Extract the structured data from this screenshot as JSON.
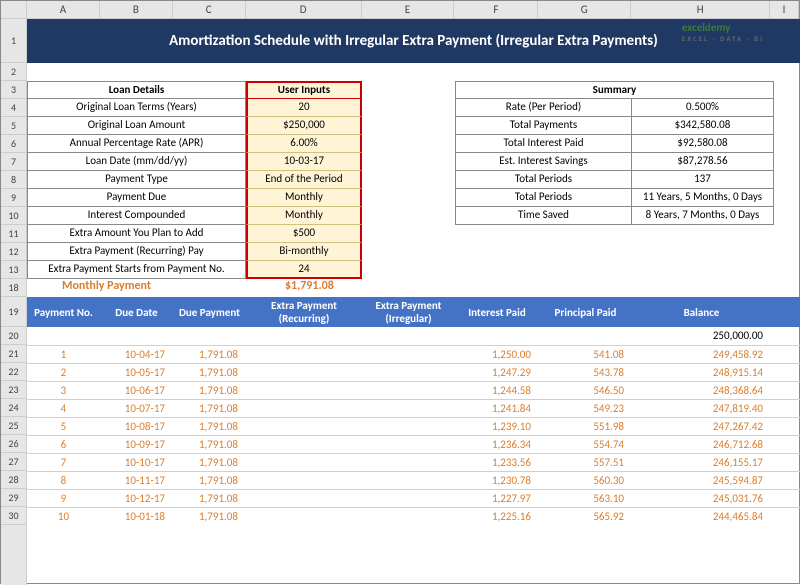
{
  "title": "Amortization Schedule with Irregular Extra Payment (Irregular Extra Payments)",
  "logo": {
    "name": "exceldemy",
    "tagline": "EXCEL · DATA · BI"
  },
  "columns": [
    "A",
    "B",
    "C",
    "D",
    "E",
    "F",
    "G",
    "H",
    "I"
  ],
  "rows": [
    1,
    2,
    3,
    4,
    5,
    6,
    7,
    8,
    9,
    10,
    11,
    12,
    13,
    14,
    15,
    16,
    17,
    18,
    19,
    20,
    21,
    22,
    23,
    24,
    25,
    26,
    27,
    28,
    29,
    30
  ],
  "loan_details": {
    "header_label": "Loan Details",
    "header_value": "User Inputs",
    "items": [
      {
        "label": "Original Loan Terms (Years)",
        "value": "20"
      },
      {
        "label": "Original Loan Amount",
        "value": "$250,000"
      },
      {
        "label": "Annual Percentage Rate (APR)",
        "value": "6.00%"
      },
      {
        "label": "Loan Date (mm/dd/yy)",
        "value": "10-03-17"
      },
      {
        "label": "Payment Type",
        "value": "End of the Period"
      },
      {
        "label": "Payment Due",
        "value": "Monthly"
      },
      {
        "label": "Interest Compounded",
        "value": "Monthly"
      },
      {
        "label": "Extra Amount You Plan to Add",
        "value": "$500"
      },
      {
        "label": "Extra Payment (Recurring) Pay",
        "value": "Bi-monthly"
      },
      {
        "label": "Extra Payment Starts from Payment No.",
        "value": "24"
      }
    ]
  },
  "summary": {
    "header": "Summary",
    "items": [
      {
        "label": "Rate (Per Period)",
        "value": "0.500%"
      },
      {
        "label": "Total Payments",
        "value": "$342,580.08"
      },
      {
        "label": "Total Interest Paid",
        "value": "$92,580.08"
      },
      {
        "label": "Est. Interest Savings",
        "value": "$87,278.56"
      },
      {
        "label": "Total Periods",
        "value": "137"
      },
      {
        "label": "Total Periods",
        "value": "11 Years, 5 Months, 0 Days"
      },
      {
        "label": "Time Saved",
        "value": "8 Years, 7 Months, 0 Days"
      }
    ]
  },
  "monthly_payment_label": "Monthly Payment",
  "monthly_payment_value": "$1,791.08",
  "table": {
    "headers": [
      "Payment No.",
      "Due Date",
      "Due Payment",
      "Extra Payment (Recurring)",
      "Extra Payment (Irregular)",
      "Interest Paid",
      "Principal Paid",
      "Balance"
    ],
    "first_row_balance": "250,000.00",
    "rows": [
      {
        "no": "1",
        "date": "10-04-17",
        "due": "1,791.08",
        "int": "1,250.00",
        "prin": "541.08",
        "bal": "249,458.92"
      },
      {
        "no": "2",
        "date": "10-05-17",
        "due": "1,791.08",
        "int": "1,247.29",
        "prin": "543.78",
        "bal": "248,915.14"
      },
      {
        "no": "3",
        "date": "10-06-17",
        "due": "1,791.08",
        "int": "1,244.58",
        "prin": "546.50",
        "bal": "248,368.64"
      },
      {
        "no": "4",
        "date": "10-07-17",
        "due": "1,791.08",
        "int": "1,241.84",
        "prin": "549.23",
        "bal": "247,819.40"
      },
      {
        "no": "5",
        "date": "10-08-17",
        "due": "1,791.08",
        "int": "1,239.10",
        "prin": "551.98",
        "bal": "247,267.42"
      },
      {
        "no": "6",
        "date": "10-09-17",
        "due": "1,791.08",
        "int": "1,236.34",
        "prin": "554.74",
        "bal": "246,712.68"
      },
      {
        "no": "7",
        "date": "10-10-17",
        "due": "1,791.08",
        "int": "1,233.56",
        "prin": "557.51",
        "bal": "246,155.17"
      },
      {
        "no": "8",
        "date": "10-11-17",
        "due": "1,791.08",
        "int": "1,230.78",
        "prin": "560.30",
        "bal": "245,594.87"
      },
      {
        "no": "9",
        "date": "10-12-17",
        "due": "1,791.08",
        "int": "1,227.97",
        "prin": "563.10",
        "bal": "245,031.76"
      },
      {
        "no": "10",
        "date": "10-01-18",
        "due": "1,791.08",
        "int": "1,225.16",
        "prin": "565.92",
        "bal": "244,465.84"
      }
    ]
  },
  "colors": {
    "title_bg": "#203864",
    "accent": "#d97e2e",
    "input_bg": "#fff4d6",
    "input_border": "#c00000",
    "table_header_bg": "#4472c4"
  }
}
